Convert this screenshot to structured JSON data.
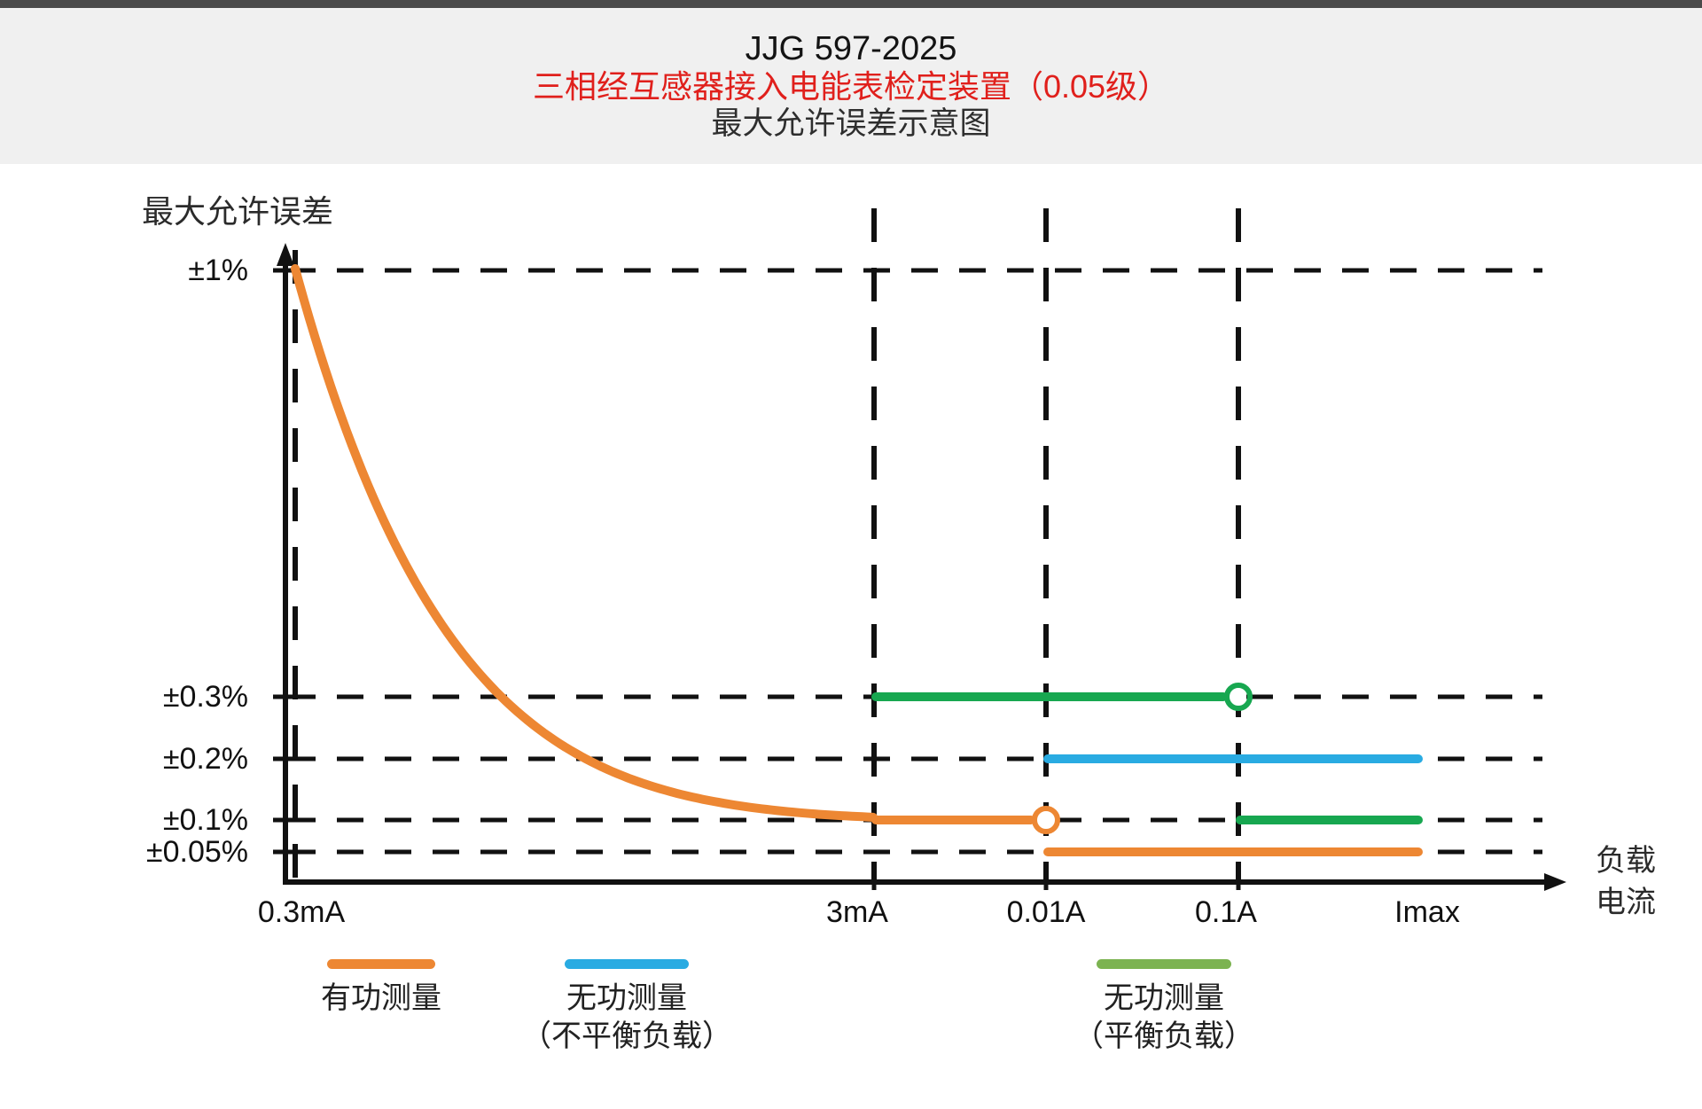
{
  "header": {
    "standard_number": "JJG 597-2025",
    "device_title": "三相经互感器接入电能表检定装置（0.05级）",
    "device_title_color": "#e0201c",
    "chart_subtitle": "最大允许误差示意图"
  },
  "colors": {
    "active_energy": "#ed8733",
    "reactive_unbalanced": "#29abe2",
    "reactive_balanced": "#17a750",
    "legend_green": "#7cb351",
    "grid": "#111111",
    "header_bar": "#4a4a4a",
    "header_bg": "#f0f0f0"
  },
  "chart_data": {
    "type": "line",
    "title": "最大允许误差示意图",
    "grid": "dashed-black",
    "legend_position": "bottom",
    "y_axis": {
      "title": "最大允许误差",
      "unit": "%",
      "ticks": [
        {
          "label": "±1%",
          "value_pct": 1
        },
        {
          "label": "±0.3%",
          "value_pct": 0.3
        },
        {
          "label": "±0.2%",
          "value_pct": 0.2
        },
        {
          "label": "±0.1%",
          "value_pct": 0.1
        },
        {
          "label": "±0.05%",
          "value_pct": 0.05
        }
      ]
    },
    "x_axis": {
      "title": "负载电流",
      "title_lines": [
        "负载",
        "电流"
      ],
      "ticks": [
        {
          "label": "0.3mA",
          "value_A": 0.0003
        },
        {
          "label": "3mA",
          "value_A": 0.003
        },
        {
          "label": "0.01A",
          "value_A": 0.01
        },
        {
          "label": "0.1A",
          "value_A": 0.1
        },
        {
          "label": "Imax",
          "value_A": "Imax"
        }
      ]
    },
    "series": [
      {
        "name": "有功测量",
        "color": "#ed8733",
        "segments": [
          {
            "kind": "decay-curve",
            "x_from": "0.3mA",
            "y_from": "±1%",
            "x_to": "3mA",
            "y_to": "±0.1%"
          },
          {
            "kind": "hline",
            "y": "±0.1%",
            "x_from": "3mA",
            "x_to": "0.01A",
            "end_marker": "open-circle"
          },
          {
            "kind": "hline",
            "y": "±0.05%",
            "x_from": "0.01A",
            "x_to": "Imax"
          }
        ]
      },
      {
        "name": "无功测量（不平衡负载）",
        "color": "#29abe2",
        "segments": [
          {
            "kind": "hline",
            "y": "±0.2%",
            "x_from": "0.01A",
            "x_to": "Imax"
          }
        ]
      },
      {
        "name": "无功测量（平衡负载）",
        "color": "#17a750",
        "segments": [
          {
            "kind": "hline",
            "y": "±0.3%",
            "x_from": "3mA",
            "x_to": "0.1A",
            "end_marker": "open-circle"
          },
          {
            "kind": "hline",
            "y": "±0.1%",
            "x_from": "0.1A",
            "x_to": "Imax"
          }
        ]
      }
    ]
  },
  "legend": {
    "items": [
      {
        "label": "有功测量",
        "sublabel": "",
        "color": "#ed8733"
      },
      {
        "label": "无功测量",
        "sublabel": "（不平衡负载）",
        "color": "#29abe2"
      },
      {
        "label": "无功测量",
        "sublabel": "（平衡负载）",
        "color": "#7cb351"
      }
    ]
  }
}
